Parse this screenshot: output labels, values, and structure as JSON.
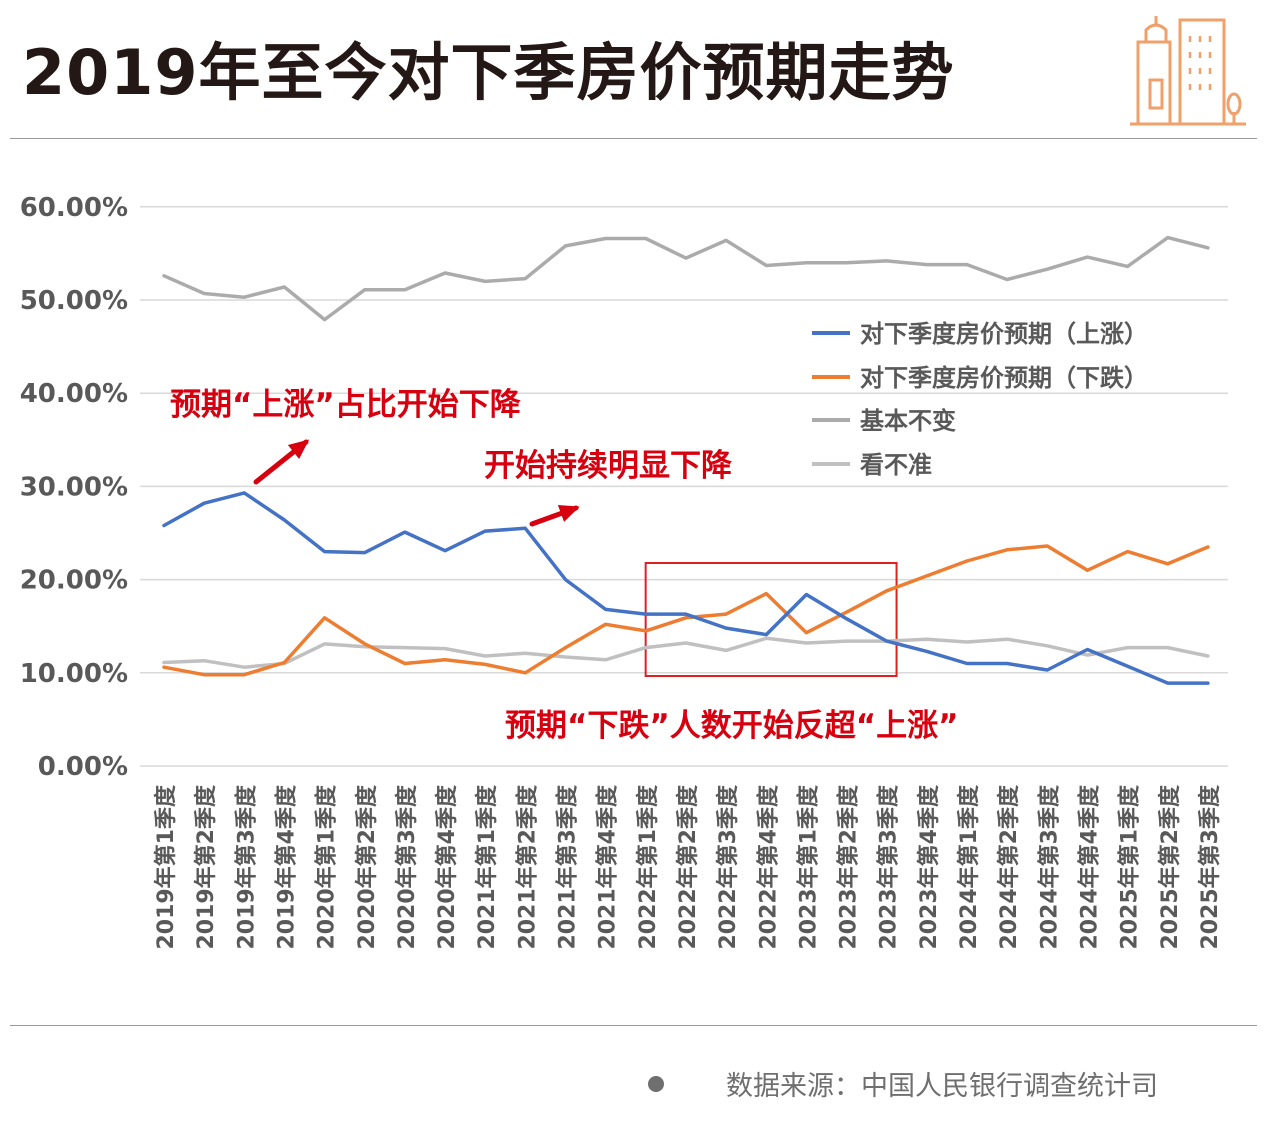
{
  "page": {
    "title": "2019年至今对下季房价预期走势",
    "source": "数据来源：中国人民银行调查统计司",
    "logo_icon": "city-buildings-icon"
  },
  "chart_data": {
    "type": "line",
    "ylim": [
      0,
      60
    ],
    "yticks": [
      "0.00%",
      "10.00%",
      "20.00%",
      "30.00%",
      "40.00%",
      "50.00%",
      "60.00%"
    ],
    "categories": [
      "2019年第1季度",
      "2019年第2季度",
      "2019年第3季度",
      "2019年第4季度",
      "2020年第1季度",
      "2020年第2季度",
      "2020年第3季度",
      "2020年第4季度",
      "2021年第1季度",
      "2021年第2季度",
      "2021年第3季度",
      "2021年第4季度",
      "2022年第1季度",
      "2022年第2季度",
      "2022年第3季度",
      "2022年第4季度",
      "2023年第1季度",
      "2023年第2季度",
      "2023年第3季度",
      "2023年第4季度",
      "2024年第1季度",
      "2024年第2季度",
      "2024年第3季度",
      "2024年第4季度",
      "2025年第1季度",
      "2025年第2季度",
      "2025年第3季度"
    ],
    "series": [
      {
        "name": "对下季度房价预期（上涨）",
        "color": "#4472C4",
        "values": [
          25.8,
          28.2,
          29.3,
          26.4,
          23.0,
          22.9,
          25.1,
          23.1,
          25.2,
          25.5,
          20.0,
          16.8,
          16.3,
          16.3,
          14.8,
          14.1,
          18.4,
          15.8,
          13.4,
          12.3,
          11.0,
          11.0,
          10.3,
          12.5,
          10.7,
          8.9,
          8.9
        ]
      },
      {
        "name": "对下季度房价预期（下跌）",
        "color": "#ED7D31",
        "values": [
          10.6,
          9.8,
          9.8,
          11.1,
          15.9,
          13.1,
          11.0,
          11.4,
          10.9,
          10.0,
          12.7,
          15.2,
          14.5,
          15.9,
          16.3,
          18.5,
          14.3,
          16.5,
          18.8,
          20.4,
          22.0,
          23.2,
          23.6,
          21.0,
          23.0,
          21.7,
          23.5
        ]
      },
      {
        "name": "基本不变",
        "color": "#ABABAB",
        "values": [
          52.6,
          50.7,
          50.3,
          51.4,
          47.9,
          51.1,
          51.1,
          52.9,
          52.0,
          52.3,
          55.8,
          56.6,
          56.6,
          54.5,
          56.4,
          53.7,
          54.0,
          54.0,
          54.2,
          53.8,
          53.8,
          52.2,
          53.3,
          54.6,
          53.6,
          56.7,
          55.6
        ]
      },
      {
        "name": "看不准",
        "color": "#C0C0C0",
        "values": [
          11.1,
          11.3,
          10.6,
          11.0,
          13.1,
          12.8,
          12.7,
          12.6,
          11.8,
          12.1,
          11.7,
          11.4,
          12.7,
          13.2,
          12.4,
          13.7,
          13.2,
          13.4,
          13.4,
          13.6,
          13.3,
          13.6,
          12.9,
          11.9,
          12.7,
          12.7,
          11.8
        ]
      }
    ],
    "annotations": [
      {
        "text": "预期“上涨”占比开始下降",
        "color": "#D7000F"
      },
      {
        "text": "开始持续明显下降",
        "color": "#D7000F"
      },
      {
        "text": "预期“下跌”人数开始反超“上涨”",
        "color": "#D7000F"
      }
    ],
    "highlight_range": [
      "2021年第4季度",
      "2023年第2季度"
    ],
    "legend_position": "right",
    "grid": true
  }
}
